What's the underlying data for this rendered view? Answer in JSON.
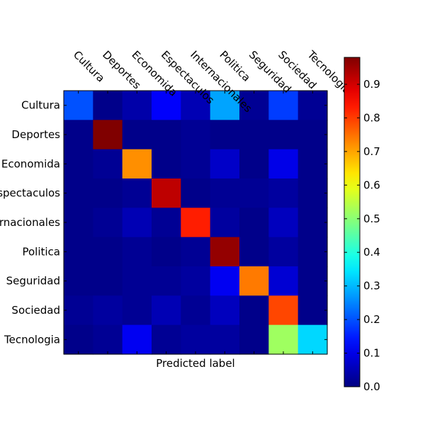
{
  "chart_data": {
    "type": "heatmap",
    "title": "",
    "xlabel": "Predicted label",
    "ylabel": "",
    "categories": [
      "Cultura",
      "Deportes",
      "Economida",
      "Espectaculos",
      "Internacionales",
      "Politica",
      "Seguridad",
      "Sociedad",
      "Tecnologia"
    ],
    "matrix": [
      [
        0.2,
        0.01,
        0.04,
        0.12,
        0.05,
        0.28,
        0.02,
        0.18,
        0.02
      ],
      [
        0.01,
        0.98,
        0.01,
        0.01,
        0.02,
        0.01,
        0.01,
        0.01,
        0.01
      ],
      [
        0.01,
        0.02,
        0.72,
        0.01,
        0.02,
        0.07,
        0.01,
        0.1,
        0.01
      ],
      [
        0.01,
        0.01,
        0.02,
        0.92,
        0.01,
        0.02,
        0.02,
        0.03,
        0.01
      ],
      [
        0.01,
        0.02,
        0.05,
        0.02,
        0.83,
        0.03,
        0.01,
        0.06,
        0.01
      ],
      [
        0.01,
        0.01,
        0.02,
        0.01,
        0.02,
        0.96,
        0.01,
        0.03,
        0.01
      ],
      [
        0.01,
        0.01,
        0.02,
        0.02,
        0.03,
        0.11,
        0.74,
        0.08,
        0.01
      ],
      [
        0.02,
        0.03,
        0.02,
        0.05,
        0.02,
        0.06,
        0.01,
        0.79,
        0.01
      ],
      [
        0.01,
        0.02,
        0.11,
        0.02,
        0.03,
        0.03,
        0.01,
        0.52,
        0.33
      ]
    ],
    "colorbar": {
      "min": 0.0,
      "max": 0.98,
      "ticks": [
        0.0,
        0.1,
        0.2,
        0.3,
        0.4,
        0.5,
        0.6,
        0.7,
        0.8,
        0.9
      ],
      "tick_labels": [
        "0.0",
        "0.1",
        "0.2",
        "0.3",
        "0.4",
        "0.5",
        "0.6",
        "0.7",
        "0.8",
        "0.9"
      ],
      "colormap": "jet"
    }
  }
}
